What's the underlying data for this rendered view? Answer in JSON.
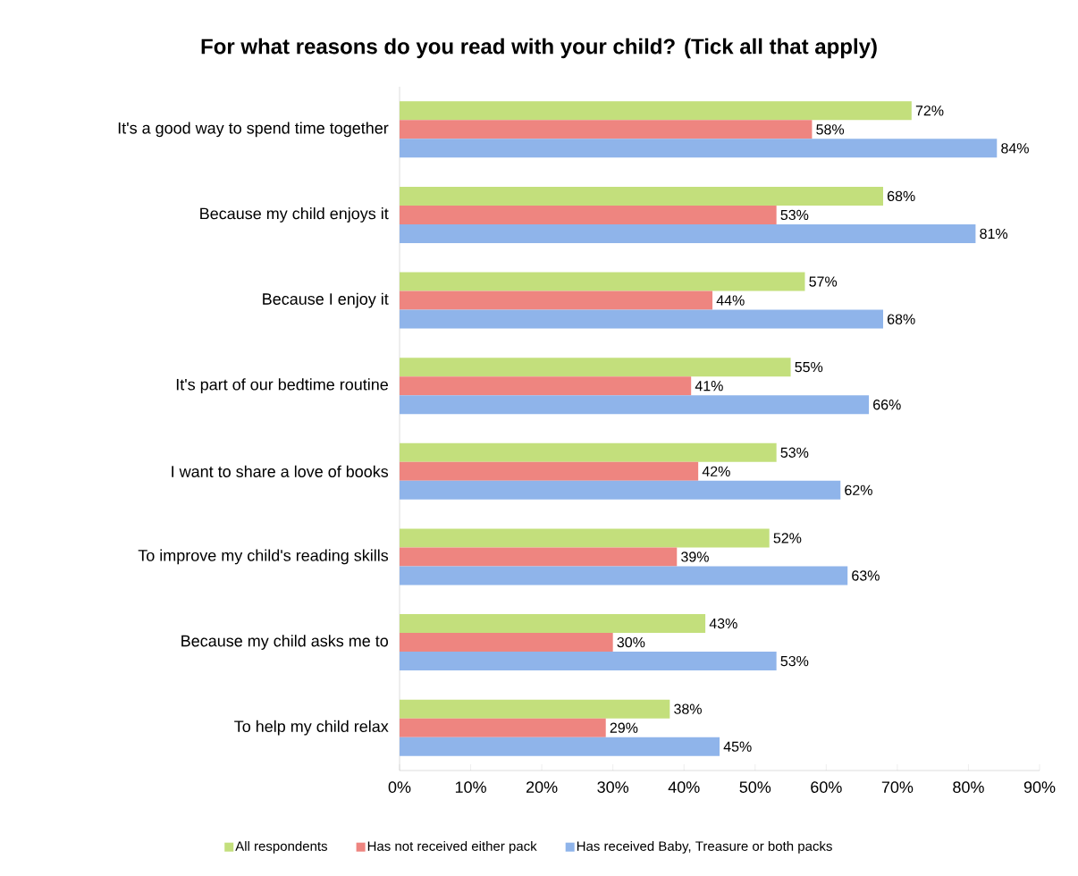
{
  "chart_data": {
    "type": "bar",
    "orientation": "horizontal",
    "title": "For what reasons do you read with your child? (Tick all that apply)",
    "categories": [
      "It's a good way to spend time together",
      "Because my child enjoys it",
      "Because I enjoy it",
      "It's part of our bedtime routine",
      "I want to share a love of books",
      "To improve my child's reading skills",
      "Because my child asks me to",
      "To help my child relax"
    ],
    "series": [
      {
        "name": "All respondents",
        "color": "#c3df7c",
        "values": [
          72,
          68,
          57,
          55,
          53,
          52,
          43,
          38
        ],
        "value_labels": [
          "72%",
          "68%",
          "57%",
          "55%",
          "53%",
          "52%",
          "43%",
          "38%"
        ]
      },
      {
        "name": "Has not received either pack",
        "color": "#ee8580",
        "values": [
          58,
          53,
          44,
          41,
          42,
          39,
          30,
          29
        ],
        "value_labels": [
          "58%",
          "53%",
          "44%",
          "41%",
          "42%",
          "39%",
          "30%",
          "29%"
        ]
      },
      {
        "name": "Has received Baby, Treasure or both packs",
        "color": "#8fb4ea",
        "values": [
          84,
          81,
          68,
          66,
          62,
          63,
          53,
          45
        ],
        "value_labels": [
          "84%",
          "81%",
          "68%",
          "66%",
          "62%",
          "63%",
          "53%",
          "45%"
        ]
      }
    ],
    "xlim": [
      0,
      90
    ],
    "xticks": [
      {
        "value": 0,
        "label": "0%"
      },
      {
        "value": 10,
        "label": "10%"
      },
      {
        "value": 20,
        "label": "20%"
      },
      {
        "value": 30,
        "label": "30%"
      },
      {
        "value": 40,
        "label": "40%"
      },
      {
        "value": 50,
        "label": "50%"
      },
      {
        "value": 60,
        "label": "60%"
      },
      {
        "value": 70,
        "label": "70%"
      },
      {
        "value": 80,
        "label": "80%"
      },
      {
        "value": 90,
        "label": "90%"
      }
    ],
    "legend": "bottom"
  }
}
